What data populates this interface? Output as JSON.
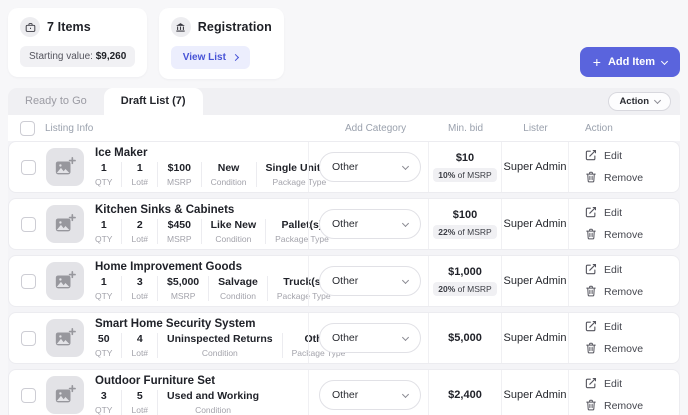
{
  "summary": {
    "items_card": {
      "icon": "briefcase-icon",
      "title": "7 Items",
      "starting_value_label": "Starting value: ",
      "starting_value_amount": "$9,260"
    },
    "registration_card": {
      "icon": "bank-icon",
      "title": "Registration",
      "button_label": "View List"
    }
  },
  "add_item": {
    "label": "Add Item",
    "plus": "+"
  },
  "tabs": [
    {
      "label": "Ready to Go",
      "active": false
    },
    {
      "label": "Draft List (7)",
      "active": true
    }
  ],
  "action_button": {
    "label": "Action"
  },
  "table": {
    "columns": [
      "Listing Info",
      "Add Category",
      "Min. bid",
      "Lister",
      "Action"
    ],
    "rows": [
      {
        "title": "Ice Maker",
        "stats": [
          {
            "value": "1",
            "label": "QTY"
          },
          {
            "value": "1",
            "label": "Lot#"
          },
          {
            "value": "$100",
            "label": "MSRP"
          },
          {
            "value": "New",
            "label": "Condition"
          },
          {
            "value": "Single Unit(s)",
            "label": "Package Type"
          }
        ],
        "category": "Other",
        "min_bid": "$10",
        "msrp_badge": {
          "bold": "10%",
          "rest": " of MSRP"
        },
        "lister": "Super Admin",
        "actions": {
          "edit": "Edit",
          "remove": "Remove"
        }
      },
      {
        "title": "Kitchen Sinks & Cabinets",
        "stats": [
          {
            "value": "1",
            "label": "QTY"
          },
          {
            "value": "2",
            "label": "Lot#"
          },
          {
            "value": "$450",
            "label": "MSRP"
          },
          {
            "value": "Like New",
            "label": "Condition"
          },
          {
            "value": "Pallet(s)",
            "label": "Package Type"
          }
        ],
        "category": "Other",
        "min_bid": "$100",
        "msrp_badge": {
          "bold": "22%",
          "rest": " of MSRP"
        },
        "lister": "Super Admin",
        "actions": {
          "edit": "Edit",
          "remove": "Remove"
        }
      },
      {
        "title": "Home Improvement Goods",
        "stats": [
          {
            "value": "1",
            "label": "QTY"
          },
          {
            "value": "3",
            "label": "Lot#"
          },
          {
            "value": "$5,000",
            "label": "MSRP"
          },
          {
            "value": "Salvage",
            "label": "Condition"
          },
          {
            "value": "Truck(s)",
            "label": "Package Type"
          }
        ],
        "category": "Other",
        "min_bid": "$1,000",
        "msrp_badge": {
          "bold": "20%",
          "rest": " of MSRP"
        },
        "lister": "Super Admin",
        "actions": {
          "edit": "Edit",
          "remove": "Remove"
        }
      },
      {
        "title": "Smart Home Security System",
        "stats": [
          {
            "value": "50",
            "label": "QTY"
          },
          {
            "value": "4",
            "label": "Lot#"
          },
          {
            "value": "Uninspected Returns",
            "label": "Condition"
          },
          {
            "value": "Other",
            "label": "Package Type"
          }
        ],
        "category": "Other",
        "min_bid": "$5,000",
        "msrp_badge": null,
        "lister": "Super Admin",
        "actions": {
          "edit": "Edit",
          "remove": "Remove"
        }
      },
      {
        "title": "Outdoor Furniture Set",
        "stats": [
          {
            "value": "3",
            "label": "QTY"
          },
          {
            "value": "5",
            "label": "Lot#"
          },
          {
            "value": "Used and Working",
            "label": "Condition"
          }
        ],
        "category": "Other",
        "min_bid": "$2,400",
        "msrp_badge": null,
        "lister": "Super Admin",
        "actions": {
          "edit": "Edit",
          "remove": "Remove"
        }
      }
    ]
  },
  "colors": {
    "accent": "#5a64dd",
    "accent_light": "#eceefd",
    "accent_text": "#4753d6",
    "badge_bg": "#f0f0f3",
    "page_bg": "#f7f7f9"
  }
}
